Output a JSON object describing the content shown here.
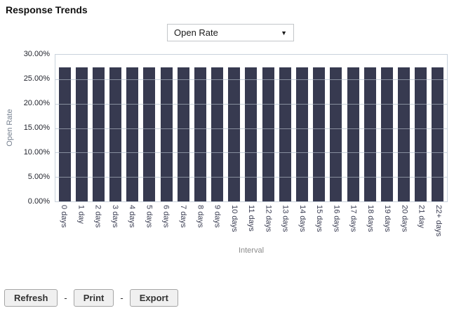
{
  "title": "Response Trends",
  "metric_dropdown": {
    "value": "Open Rate",
    "arrow_icon": "▼"
  },
  "chart_data": {
    "type": "bar",
    "title": "Response Trends",
    "xlabel": "Interval",
    "ylabel": "Open Rate",
    "categories": [
      "0 days",
      "1 day",
      "2 days",
      "3 days",
      "4 days",
      "5 days",
      "6 days",
      "7 days",
      "8 days",
      "9 days",
      "10 days",
      "11 days",
      "12 days",
      "13 days",
      "14 days",
      "15 days",
      "16 days",
      "17 days",
      "18 days",
      "19 days",
      "20 days",
      "21 day",
      "22+ days"
    ],
    "values": [
      27.4,
      27.4,
      27.4,
      27.4,
      27.4,
      27.4,
      27.4,
      27.4,
      27.4,
      27.4,
      27.4,
      27.4,
      27.4,
      27.4,
      27.4,
      27.4,
      27.4,
      27.4,
      27.4,
      27.4,
      27.4,
      27.4,
      27.4
    ],
    "ylim": [
      0,
      30
    ],
    "ytick_labels": [
      "30.00%",
      "25.00%",
      "20.00%",
      "15.00%",
      "10.00%",
      "5.00%",
      "0.00%"
    ],
    "grid": true,
    "legend": false,
    "bar_color": "#373a50",
    "gridline_color": "#c9d2dc"
  },
  "footer": {
    "refresh_label": "Refresh",
    "print_label": "Print",
    "export_label": "Export",
    "separator": "-"
  }
}
